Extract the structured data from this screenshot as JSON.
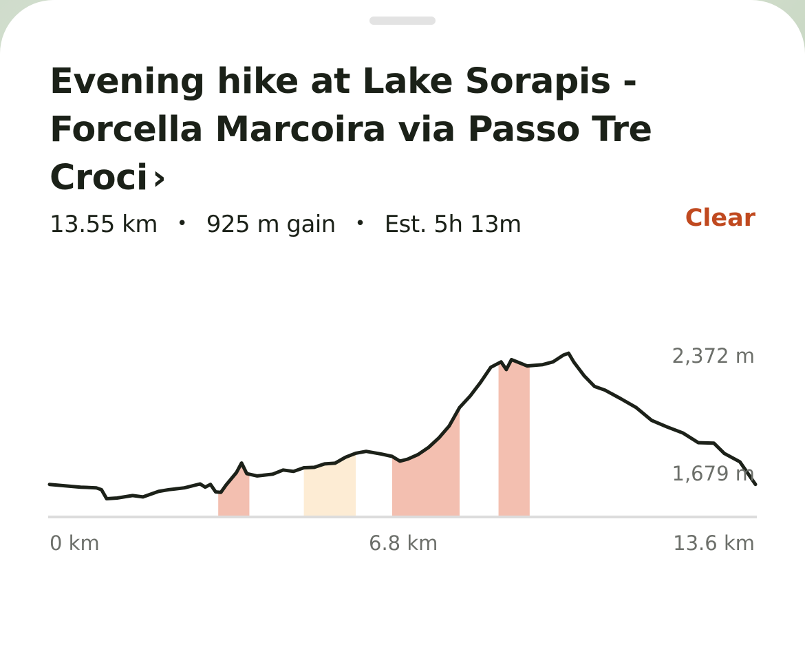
{
  "sheet": {
    "title": "Evening hike at Lake Sorapis - Forcella Marcoira via Passo Tre Croci",
    "title_chevron": "›",
    "stats": {
      "distance": "13.55 km",
      "gain": "925 m gain",
      "estimate": "Est. 5h 13m",
      "separator": "•"
    },
    "clear_label": "Clear"
  },
  "chart_data": {
    "type": "area",
    "title": "",
    "xlabel": "",
    "ylabel": "",
    "x_unit": "km",
    "y_unit": "m",
    "xlim": [
      0,
      13.6
    ],
    "ylim": [
      1520,
      2460
    ],
    "x_ticks": [
      "0 km",
      "6.8 km",
      "13.6 km"
    ],
    "y_ticks": [
      "2,372 m",
      "1,679 m"
    ],
    "y_tick_values": [
      2372,
      1679
    ],
    "grid": false,
    "line_color": "#1c2119",
    "profile": [
      [
        0.0,
        1663
      ],
      [
        0.3,
        1657
      ],
      [
        0.6,
        1651
      ],
      [
        0.9,
        1648
      ],
      [
        1.0,
        1640
      ],
      [
        1.1,
        1600
      ],
      [
        1.3,
        1603
      ],
      [
        1.6,
        1614
      ],
      [
        1.8,
        1608
      ],
      [
        2.1,
        1632
      ],
      [
        2.3,
        1640
      ],
      [
        2.6,
        1648
      ],
      [
        2.9,
        1665
      ],
      [
        3.0,
        1651
      ],
      [
        3.1,
        1663
      ],
      [
        3.2,
        1630
      ],
      [
        3.3,
        1628
      ],
      [
        3.4,
        1660
      ],
      [
        3.6,
        1715
      ],
      [
        3.7,
        1757
      ],
      [
        3.8,
        1710
      ],
      [
        4.0,
        1700
      ],
      [
        4.3,
        1708
      ],
      [
        4.5,
        1726
      ],
      [
        4.7,
        1720
      ],
      [
        4.9,
        1736
      ],
      [
        5.1,
        1738
      ],
      [
        5.3,
        1753
      ],
      [
        5.5,
        1756
      ],
      [
        5.7,
        1782
      ],
      [
        5.9,
        1800
      ],
      [
        6.1,
        1808
      ],
      [
        6.4,
        1796
      ],
      [
        6.6,
        1786
      ],
      [
        6.75,
        1765
      ],
      [
        6.9,
        1774
      ],
      [
        7.1,
        1794
      ],
      [
        7.3,
        1825
      ],
      [
        7.5,
        1867
      ],
      [
        7.7,
        1920
      ],
      [
        7.9,
        2001
      ],
      [
        8.1,
        2050
      ],
      [
        8.3,
        2110
      ],
      [
        8.5,
        2177
      ],
      [
        8.7,
        2201
      ],
      [
        8.8,
        2167
      ],
      [
        8.9,
        2211
      ],
      [
        9.0,
        2202
      ],
      [
        9.2,
        2183
      ],
      [
        9.5,
        2189
      ],
      [
        9.7,
        2201
      ],
      [
        9.9,
        2231
      ],
      [
        10.0,
        2239
      ],
      [
        10.1,
        2200
      ],
      [
        10.3,
        2140
      ],
      [
        10.5,
        2093
      ],
      [
        10.7,
        2077
      ],
      [
        11.0,
        2040
      ],
      [
        11.3,
        2001
      ],
      [
        11.6,
        1944
      ],
      [
        11.9,
        1915
      ],
      [
        12.2,
        1889
      ],
      [
        12.5,
        1846
      ],
      [
        12.8,
        1844
      ],
      [
        13.0,
        1799
      ],
      [
        13.3,
        1762
      ],
      [
        13.6,
        1663
      ]
    ],
    "highlight_bands": [
      {
        "from": 3.25,
        "to": 3.85,
        "color": "#f3bfb0"
      },
      {
        "from": 4.9,
        "to": 5.9,
        "color": "#fdecd4"
      },
      {
        "from": 6.6,
        "to": 7.9,
        "color": "#f3bfb0"
      },
      {
        "from": 8.65,
        "to": 9.25,
        "color": "#f3bfb0"
      }
    ]
  }
}
